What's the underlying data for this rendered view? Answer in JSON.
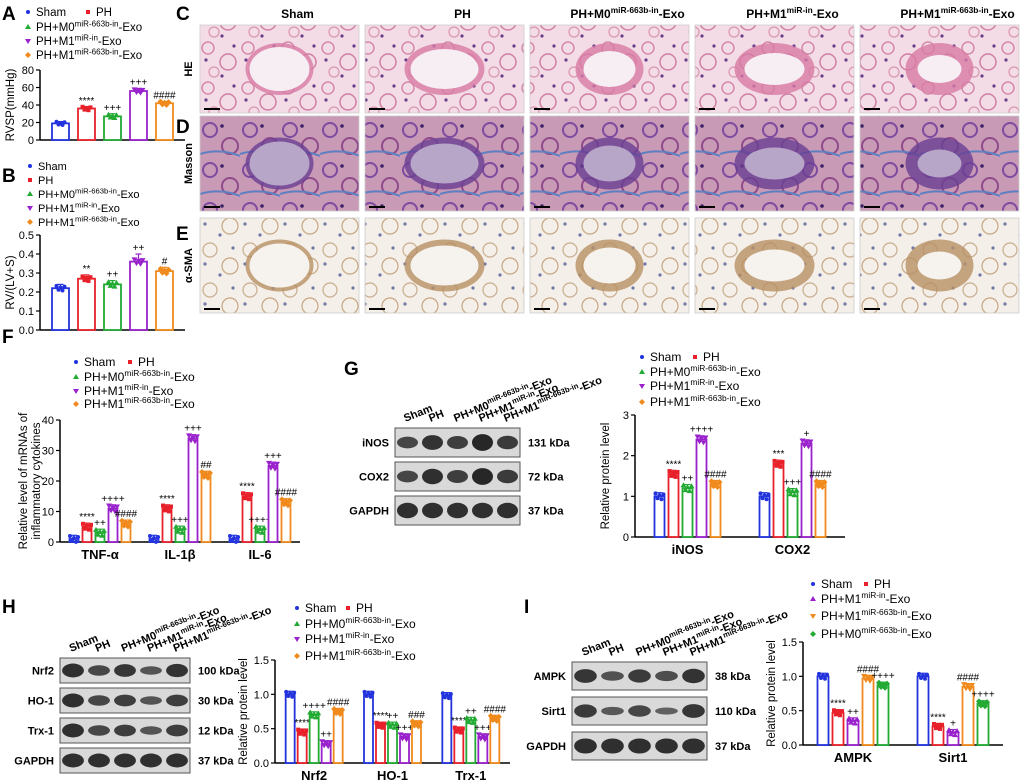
{
  "panels": {
    "A": {
      "letter": "A",
      "legend": [
        {
          "label": "Sham",
          "color": "#2233dd"
        },
        {
          "label": "PH",
          "color": "#e8202a"
        },
        {
          "label": "PH+M0miR-663b-in-Exo",
          "color": "#22aa33"
        },
        {
          "label": "PH+M1miR-in-Exo",
          "color": "#9922cc"
        },
        {
          "label": "PH+M1miR-663b-in-Exo",
          "color": "#f08a1c"
        }
      ],
      "chart_data": {
        "type": "bar",
        "ylabel": "RVSP(mmHg)",
        "ylim": [
          0,
          80
        ],
        "yticks": [
          0,
          20,
          40,
          60,
          80
        ],
        "categories": [
          "Sham",
          "PH",
          "PH+M0miR-663b-in-Exo",
          "PH+M1miR-in-Exo",
          "PH+M1miR-663b-in-Exo"
        ],
        "values": [
          19,
          36,
          27,
          56,
          42
        ],
        "errors": [
          2,
          2,
          3,
          3,
          2
        ],
        "annotations": [
          "",
          "****",
          "+++",
          "+++",
          "####"
        ]
      }
    },
    "B": {
      "letter": "B",
      "chart_data": {
        "type": "bar",
        "ylabel": "RV/(LV+S)",
        "ylim": [
          0,
          0.5
        ],
        "yticks": [
          "0.0",
          "0.1",
          "0.2",
          "0.3",
          "0.4",
          "0.5"
        ],
        "categories": [
          "Sham",
          "PH",
          "PH+M0miR-663b-in-Exo",
          "PH+M1miR-in-Exo",
          "PH+M1miR-663b-in-Exo"
        ],
        "values": [
          0.22,
          0.27,
          0.24,
          0.36,
          0.31
        ],
        "errors": [
          0.02,
          0.02,
          0.02,
          0.04,
          0.02
        ],
        "annotations": [
          "",
          "**",
          "++",
          "++",
          "#"
        ]
      }
    },
    "C": {
      "letter": "C",
      "columns": [
        "Sham",
        "PH",
        "PH+M0miR-663b-in-Exo",
        "PH+M1miR-in-Exo",
        "PH+M1miR-663b-in-Exo"
      ],
      "row_label": "HE"
    },
    "D": {
      "letter": "D",
      "row_label": "Masson"
    },
    "E": {
      "letter": "E",
      "row_label": "α-SMA"
    },
    "F": {
      "letter": "F",
      "chart_data": {
        "type": "bar",
        "ylabel": "Relative level of mRNAs of inflammatory cytokines",
        "ylim": [
          0,
          40
        ],
        "yticks": [
          0,
          10,
          20,
          30,
          40
        ],
        "categories": [
          "TNF-α",
          "IL-1β",
          "IL-6"
        ],
        "series": [
          {
            "name": "Sham",
            "values": [
              1,
              1,
              1
            ]
          },
          {
            "name": "PH",
            "values": [
              5,
              11,
              15
            ]
          },
          {
            "name": "PH+M0miR-663b-in-Exo",
            "values": [
              3,
              4,
              4
            ]
          },
          {
            "name": "PH+M1miR-in-Exo",
            "values": [
              11,
              34,
              25
            ]
          },
          {
            "name": "PH+M1miR-663b-in-Exo",
            "values": [
              6,
              22,
              13
            ]
          }
        ],
        "annotations": [
          [
            "",
            "****",
            "++",
            "++++",
            "####"
          ],
          [
            "",
            "****",
            "+++",
            "+++",
            "##"
          ],
          [
            "",
            "****",
            "++++",
            "+++",
            "####"
          ]
        ]
      }
    },
    "G": {
      "letter": "G",
      "blot_columns": [
        "Sham",
        "PH",
        "PH+M0miR-663b-in-Exo",
        "PH+M1miR-in-Exo",
        "PH+M1miR-663b-in-Exo"
      ],
      "blots": [
        {
          "name": "iNOS",
          "kda": "131 kDa"
        },
        {
          "name": "COX2",
          "kda": "72 kDa"
        },
        {
          "name": "GAPDH",
          "kda": "37 kDa"
        }
      ],
      "chart_data": {
        "type": "bar",
        "ylabel": "Relative protein level",
        "ylim": [
          0,
          3
        ],
        "yticks": [
          0,
          1,
          2,
          3
        ],
        "categories": [
          "iNOS",
          "COX2"
        ],
        "series": [
          {
            "name": "Sham",
            "values": [
              1.0,
              1.0
            ]
          },
          {
            "name": "PH",
            "values": [
              1.55,
              1.8
            ]
          },
          {
            "name": "PH+M0miR-663b-in-Exo",
            "values": [
              1.2,
              1.1
            ]
          },
          {
            "name": "PH+M1miR-in-Exo",
            "values": [
              2.4,
              2.3
            ]
          },
          {
            "name": "PH+M1miR-663b-in-Exo",
            "values": [
              1.3,
              1.3
            ]
          }
        ],
        "annotations": [
          [
            "",
            "****",
            "++",
            "++++",
            "####"
          ],
          [
            "",
            "***",
            "+++",
            "+",
            "####"
          ]
        ]
      }
    },
    "H": {
      "letter": "H",
      "blot_columns": [
        "Sham",
        "PH",
        "PH+M0miR-663b-in-Exo",
        "PH+M1miR-in-Exo",
        "PH+M1miR-663b-in-Exo"
      ],
      "blots": [
        {
          "name": "Nrf2",
          "kda": "100 kDa"
        },
        {
          "name": "HO-1",
          "kda": "30 kDa"
        },
        {
          "name": "Trx-1",
          "kda": "12 kDa"
        },
        {
          "name": "GAPDH",
          "kda": "37 kDa"
        }
      ],
      "chart_data": {
        "type": "bar",
        "ylabel": "Relative protein level",
        "ylim": [
          0,
          1.5
        ],
        "yticks": [
          "0.0",
          "0.5",
          "1.0",
          "1.5"
        ],
        "categories": [
          "Nrf2",
          "HO-1",
          "Trx-1"
        ],
        "series": [
          {
            "name": "Sham",
            "values": [
              1.0,
              1.0,
              0.98
            ]
          },
          {
            "name": "PH",
            "values": [
              0.45,
              0.55,
              0.48
            ]
          },
          {
            "name": "PH+M0miR-663b-in-Exo",
            "values": [
              0.7,
              0.55,
              0.62
            ]
          },
          {
            "name": "PH+M1miR-in-Exo",
            "values": [
              0.28,
              0.38,
              0.38
            ]
          },
          {
            "name": "PH+M1miR-663b-in-Exo",
            "values": [
              0.75,
              0.57,
              0.65
            ]
          }
        ],
        "annotations": [
          [
            "",
            "****",
            "++++",
            "++",
            "####"
          ],
          [
            "",
            "****",
            "++",
            "+++",
            "###"
          ],
          [
            "",
            "****",
            "++",
            "+++",
            "####"
          ]
        ]
      }
    },
    "I": {
      "letter": "I",
      "blot_columns": [
        "Sham",
        "PH",
        "PH+M0miR-663b-in-Exo",
        "PH+M1miR-in-Exo",
        "PH+M1miR-663b-in-Exo"
      ],
      "blots": [
        {
          "name": "AMPK",
          "kda": "38 kDa"
        },
        {
          "name": "Sirt1",
          "kda": "110 kDa"
        },
        {
          "name": "GAPDH",
          "kda": "37 kDa"
        }
      ],
      "chart_data": {
        "type": "bar",
        "ylabel": "Relative protein level",
        "ylim": [
          0,
          1.5
        ],
        "yticks": [
          "0.0",
          "0.5",
          "1.0",
          "1.5"
        ],
        "categories": [
          "AMPK",
          "Sirt1"
        ],
        "series": [
          {
            "name": "Sham",
            "values": [
              1.0,
              1.0
            ]
          },
          {
            "name": "PH",
            "values": [
              0.47,
              0.27
            ]
          },
          {
            "name": "PH+M1miR-in-Exo",
            "values": [
              0.35,
              0.18
            ]
          },
          {
            "name": "PH+M1miR-663b-in-Exo",
            "values": [
              0.97,
              0.85
            ]
          },
          {
            "name": "PH+M0miR-663b-in-Exo",
            "values": [
              0.87,
              0.6
            ]
          }
        ],
        "annotations": [
          [
            "",
            "****",
            "++",
            "####",
            "++++"
          ],
          [
            "",
            "****",
            "+",
            "####",
            "++++"
          ]
        ]
      }
    }
  },
  "colors": {
    "Sham": "#2233dd",
    "PH": "#e8202a",
    "PH+M0miR-663b-in-Exo": "#22aa33",
    "PH+M1miR-in-Exo": "#9922cc",
    "PH+M1miR-663b-in-Exo": "#f08a1c"
  },
  "legend_display": {
    "Sham": {
      "base": "Sham",
      "sup": "",
      "tail": ""
    },
    "PH": {
      "base": "PH",
      "sup": "",
      "tail": ""
    },
    "PH+M0miR-663b-in-Exo": {
      "base": "PH+M0",
      "sup": "miR-663b-in",
      "tail": "-Exo"
    },
    "PH+M1miR-in-Exo": {
      "base": "PH+M1",
      "sup": "miR-in",
      "tail": "-Exo"
    },
    "PH+M1miR-663b-in-Exo": {
      "base": "PH+M1",
      "sup": "miR-663b-in",
      "tail": "-Exo"
    }
  }
}
